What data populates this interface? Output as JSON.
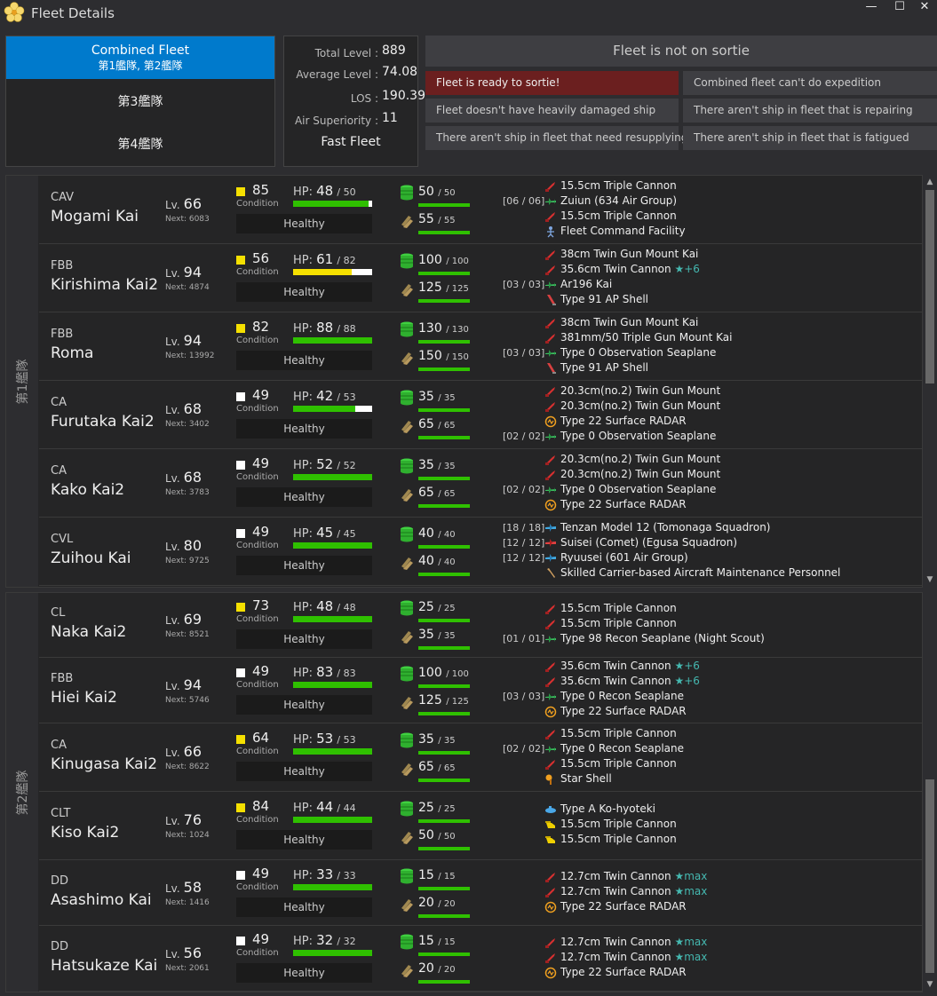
{
  "window": {
    "title": "Fleet Details",
    "minimize": "—",
    "maximize": "☐",
    "close": "✕"
  },
  "tabs": {
    "combined_label": "Combined Fleet",
    "combined_sub": "第1艦隊, 第2艦隊",
    "fleet3": "第3艦隊",
    "fleet4": "第4艦隊"
  },
  "stats": {
    "total_level_label": "Total Level :",
    "total_level": "889",
    "avg_level_label": "Average Level :",
    "avg_level": "74.08",
    "los_label": "LOS :",
    "los": "190.39",
    "air_label": "Air Superiority :",
    "air": "11",
    "speed": "Fast Fleet"
  },
  "status": {
    "header": "Fleet is not on sortie",
    "ready": "Fleet is ready to sortie!",
    "expedition": "Combined fleet can't do expedition",
    "damaged": "Fleet doesn't have heavily damaged ship",
    "repairing": "There aren't ship in fleet that is repairing",
    "resupply": "There aren't ship in fleet that need resupplying",
    "fatigued": "There aren't ship in fleet that is fatigued"
  },
  "colors": {
    "accent": "#007acc",
    "hp_green": "#2fc000",
    "hp_yellow": "#f5e000",
    "cond_sparkle": "#f5e000",
    "cond_normal": "#ffffff",
    "red_status": "#6b1f1f"
  },
  "fleets": [
    {
      "label": "第1艦隊",
      "ships": [
        {
          "type": "CAV",
          "name": "Mogami Kai",
          "lv": "66",
          "next": "Next: 6083",
          "cond": "85",
          "sparkle": true,
          "hp": "48",
          "maxhp": "50",
          "hp_fraction": 0.96,
          "status": "Healthy",
          "fuel": "50",
          "maxfuel": "50",
          "ammo": "55",
          "maxammo": "55",
          "equip": [
            {
              "slot": "",
              "name": "15.5cm Triple Cannon",
              "icon": "gun-red-icon"
            },
            {
              "slot": "[06 / 06]",
              "name": "Zuiun (634 Air Group)",
              "icon": "seaplane-icon"
            },
            {
              "slot": "",
              "name": "15.5cm Triple Cannon",
              "icon": "gun-red-icon"
            },
            {
              "slot": "",
              "name": "Fleet Command Facility",
              "icon": "command-facility-icon"
            }
          ]
        },
        {
          "type": "FBB",
          "name": "Kirishima Kai2",
          "lv": "94",
          "next": "Next: 4874",
          "cond": "56",
          "sparkle": true,
          "hp": "61",
          "maxhp": "82",
          "hp_fraction": 0.744,
          "status": "Healthy",
          "fuel": "100",
          "maxfuel": "100",
          "ammo": "125",
          "maxammo": "125",
          "equip": [
            {
              "slot": "",
              "name": "38cm Twin Gun Mount Kai",
              "icon": "gun-red-icon"
            },
            {
              "slot": "",
              "name": "35.6cm Twin Cannon",
              "icon": "gun-red-icon",
              "star": "★+6"
            },
            {
              "slot": "[03 / 03]",
              "name": "Ar196 Kai",
              "icon": "seaplane-icon"
            },
            {
              "slot": "",
              "name": "Type 91 AP Shell",
              "icon": "ap-shell-icon"
            }
          ]
        },
        {
          "type": "FBB",
          "name": "Roma",
          "lv": "94",
          "next": "Next: 13992",
          "cond": "82",
          "sparkle": true,
          "hp": "88",
          "maxhp": "88",
          "hp_fraction": 1.0,
          "status": "Healthy",
          "fuel": "130",
          "maxfuel": "130",
          "ammo": "150",
          "maxammo": "150",
          "equip": [
            {
              "slot": "",
              "name": "38cm Twin Gun Mount Kai",
              "icon": "gun-red-icon"
            },
            {
              "slot": "",
              "name": "381mm/50 Triple Gun Mount Kai",
              "icon": "gun-red-icon"
            },
            {
              "slot": "[03 / 03]",
              "name": "Type 0 Observation Seaplane",
              "icon": "seaplane-icon"
            },
            {
              "slot": "",
              "name": "Type 91 AP Shell",
              "icon": "ap-shell-icon"
            }
          ]
        },
        {
          "type": "CA",
          "name": "Furutaka Kai2",
          "lv": "68",
          "next": "Next: 3402",
          "cond": "49",
          "sparkle": false,
          "hp": "42",
          "maxhp": "53",
          "hp_fraction": 0.79,
          "status": "Healthy",
          "fuel": "35",
          "maxfuel": "35",
          "ammo": "65",
          "maxammo": "65",
          "equip": [
            {
              "slot": "",
              "name": "20.3cm(no.2) Twin Gun Mount",
              "icon": "gun-red-icon"
            },
            {
              "slot": "",
              "name": "20.3cm(no.2) Twin Gun Mount",
              "icon": "gun-red-icon"
            },
            {
              "slot": "",
              "name": "Type 22 Surface RADAR",
              "icon": "radar-icon"
            },
            {
              "slot": "[02 / 02]",
              "name": "Type 0 Observation Seaplane",
              "icon": "seaplane-icon"
            }
          ]
        },
        {
          "type": "CA",
          "name": "Kako Kai2",
          "lv": "68",
          "next": "Next: 3783",
          "cond": "49",
          "sparkle": false,
          "hp": "52",
          "maxhp": "52",
          "hp_fraction": 1.0,
          "status": "Healthy",
          "fuel": "35",
          "maxfuel": "35",
          "ammo": "65",
          "maxammo": "65",
          "equip": [
            {
              "slot": "",
              "name": "20.3cm(no.2) Twin Gun Mount",
              "icon": "gun-red-icon"
            },
            {
              "slot": "",
              "name": "20.3cm(no.2) Twin Gun Mount",
              "icon": "gun-red-icon"
            },
            {
              "slot": "[02 / 02]",
              "name": "Type 0 Observation Seaplane",
              "icon": "seaplane-icon"
            },
            {
              "slot": "",
              "name": "Type 22 Surface RADAR",
              "icon": "radar-icon"
            }
          ]
        },
        {
          "type": "CVL",
          "name": "Zuihou Kai",
          "lv": "80",
          "next": "Next: 9725",
          "cond": "49",
          "sparkle": false,
          "hp": "45",
          "maxhp": "45",
          "hp_fraction": 1.0,
          "status": "Healthy",
          "fuel": "40",
          "maxfuel": "40",
          "ammo": "40",
          "maxammo": "40",
          "equip": [
            {
              "slot": "[18 / 18]",
              "name": "Tenzan Model 12 (Tomonaga Squadron)",
              "icon": "torpedo-bomber-icon"
            },
            {
              "slot": "[12 / 12]",
              "name": "Suisei (Comet) (Egusa Squadron)",
              "icon": "dive-bomber-icon"
            },
            {
              "slot": "[12 / 12]",
              "name": "Ryuusei (601 Air Group)",
              "icon": "torpedo-bomber-icon"
            },
            {
              "slot": "",
              "name": "Skilled Carrier-based Aircraft Maintenance Personnel",
              "icon": "wrench-icon"
            }
          ]
        }
      ]
    },
    {
      "label": "第2艦隊",
      "ships": [
        {
          "type": "CL",
          "name": "Naka Kai2",
          "lv": "69",
          "next": "Next: 8521",
          "cond": "73",
          "sparkle": true,
          "hp": "48",
          "maxhp": "48",
          "hp_fraction": 1.0,
          "status": "Healthy",
          "fuel": "25",
          "maxfuel": "25",
          "ammo": "35",
          "maxammo": "35",
          "equip": [
            {
              "slot": "",
              "name": "15.5cm Triple Cannon",
              "icon": "gun-red-icon"
            },
            {
              "slot": "",
              "name": "15.5cm Triple Cannon",
              "icon": "gun-red-icon"
            },
            {
              "slot": "[01 / 01]",
              "name": "Type 98 Recon Seaplane (Night Scout)",
              "icon": "seaplane-icon"
            }
          ]
        },
        {
          "type": "FBB",
          "name": "Hiei Kai2",
          "lv": "94",
          "next": "Next: 5746",
          "cond": "49",
          "sparkle": false,
          "hp": "83",
          "maxhp": "83",
          "hp_fraction": 1.0,
          "status": "Healthy",
          "fuel": "100",
          "maxfuel": "100",
          "ammo": "125",
          "maxammo": "125",
          "equip": [
            {
              "slot": "",
              "name": "35.6cm Twin Cannon",
              "icon": "gun-red-icon",
              "star": "★+6"
            },
            {
              "slot": "",
              "name": "35.6cm Twin Cannon",
              "icon": "gun-red-icon",
              "star": "★+6"
            },
            {
              "slot": "[03 / 03]",
              "name": "Type 0 Recon Seaplane",
              "icon": "seaplane-icon"
            },
            {
              "slot": "",
              "name": "Type 22 Surface RADAR",
              "icon": "radar-icon"
            }
          ]
        },
        {
          "type": "CA",
          "name": "Kinugasa Kai2",
          "lv": "66",
          "next": "Next: 8622",
          "cond": "64",
          "sparkle": true,
          "hp": "53",
          "maxhp": "53",
          "hp_fraction": 1.0,
          "status": "Healthy",
          "fuel": "35",
          "maxfuel": "35",
          "ammo": "65",
          "maxammo": "65",
          "equip": [
            {
              "slot": "",
              "name": "15.5cm Triple Cannon",
              "icon": "gun-red-icon"
            },
            {
              "slot": "[02 / 02]",
              "name": "Type 0 Recon Seaplane",
              "icon": "seaplane-icon"
            },
            {
              "slot": "",
              "name": "15.5cm Triple Cannon",
              "icon": "gun-red-icon"
            },
            {
              "slot": "",
              "name": "Star Shell",
              "icon": "star-shell-icon"
            }
          ]
        },
        {
          "type": "CLT",
          "name": "Kiso Kai2",
          "lv": "76",
          "next": "Next: 1024",
          "cond": "84",
          "sparkle": true,
          "hp": "44",
          "maxhp": "44",
          "hp_fraction": 1.0,
          "status": "Healthy",
          "fuel": "25",
          "maxfuel": "25",
          "ammo": "50",
          "maxammo": "50",
          "equip": [
            {
              "slot": "",
              "name": "Type A Ko-hyoteki",
              "icon": "midget-sub-icon"
            },
            {
              "slot": "",
              "name": "15.5cm Triple Cannon",
              "icon": "gun-yellow-icon"
            },
            {
              "slot": "",
              "name": "15.5cm Triple Cannon",
              "icon": "gun-yellow-icon"
            }
          ]
        },
        {
          "type": "DD",
          "name": "Asashimo Kai",
          "lv": "58",
          "next": "Next: 1416",
          "cond": "49",
          "sparkle": false,
          "hp": "33",
          "maxhp": "33",
          "hp_fraction": 1.0,
          "status": "Healthy",
          "fuel": "15",
          "maxfuel": "15",
          "ammo": "20",
          "maxammo": "20",
          "equip": [
            {
              "slot": "",
              "name": "12.7cm Twin Cannon",
              "icon": "gun-red-icon",
              "star": "★max"
            },
            {
              "slot": "",
              "name": "12.7cm Twin Cannon",
              "icon": "gun-red-icon",
              "star": "★max"
            },
            {
              "slot": "",
              "name": "Type 22 Surface RADAR",
              "icon": "radar-icon"
            }
          ]
        },
        {
          "type": "DD",
          "name": "Hatsukaze Kai",
          "lv": "56",
          "next": "Next: 2061",
          "cond": "49",
          "sparkle": false,
          "hp": "32",
          "maxhp": "32",
          "hp_fraction": 1.0,
          "status": "Healthy",
          "fuel": "15",
          "maxfuel": "15",
          "ammo": "20",
          "maxammo": "20",
          "equip": [
            {
              "slot": "",
              "name": "12.7cm Twin Cannon",
              "icon": "gun-red-icon",
              "star": "★max"
            },
            {
              "slot": "",
              "name": "12.7cm Twin Cannon",
              "icon": "gun-red-icon",
              "star": "★max"
            },
            {
              "slot": "",
              "name": "Type 22 Surface RADAR",
              "icon": "radar-icon"
            }
          ]
        }
      ]
    }
  ],
  "labels": {
    "condition": "Condition",
    "hp": "HP:",
    "lv": "Lv."
  }
}
